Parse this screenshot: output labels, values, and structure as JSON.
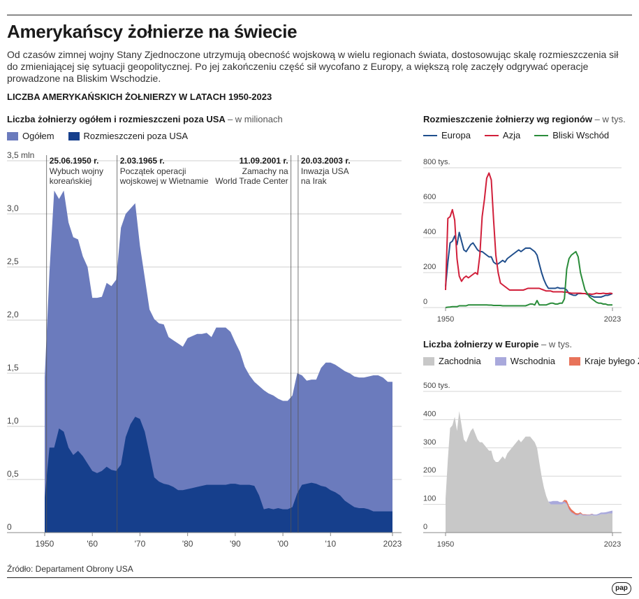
{
  "title": "Amerykańscy żołnierze na świecie",
  "lead": "Od czasów zimnej wojny Stany Zjednoczone utrzymują obecność wojskową w wielu regionach świata, dostosowując skalę rozmieszczenia sił do zmieniającej się sytuacji geopolitycznej. Po jej zakończeniu część sił wycofano z Europy, a większą rolę zaczęły odgrywać operacje prowadzone na Bliskim Wschodzie.",
  "section_title": "LICZBA AMERYKAŃSKICH ŻOŁNIERZY W LATACH 1950-2023",
  "source": "Źródło: Departament Obrony USA",
  "logo": "pap",
  "colors": {
    "total": "#6b7bbd",
    "abroad": "#163f8c",
    "europa": "#1f4e8c",
    "azja": "#d11f3a",
    "bliski": "#2a8c3a",
    "zachodnia": "#c8c8c8",
    "wschodnia": "#a9a9dc",
    "zsrr": "#e8735a"
  },
  "chart_data": [
    {
      "type": "area",
      "title": "Liczba żołnierzy ogółem i rozmieszczeni poza USA",
      "unit": "– w milionach",
      "ylim": [
        0,
        3.5
      ],
      "yticks": [
        "3,5 mln",
        "3,0",
        "2,5",
        "2,0",
        "1,5",
        "1,0",
        "0,5",
        "0"
      ],
      "xticks": [
        "1950",
        "'60",
        "'70",
        "'80",
        "'90",
        "'00",
        "'10",
        "2023"
      ],
      "legend": [
        "Ogółem",
        "Rozmieszczeni poza USA"
      ],
      "x": [
        1950,
        1951,
        1952,
        1953,
        1954,
        1955,
        1956,
        1957,
        1958,
        1959,
        1960,
        1961,
        1962,
        1963,
        1964,
        1965,
        1966,
        1967,
        1968,
        1969,
        1970,
        1971,
        1972,
        1973,
        1974,
        1975,
        1976,
        1977,
        1978,
        1979,
        1980,
        1981,
        1982,
        1983,
        1984,
        1985,
        1986,
        1987,
        1988,
        1989,
        1990,
        1991,
        1992,
        1993,
        1994,
        1995,
        1996,
        1997,
        1998,
        1999,
        2000,
        2001,
        2002,
        2003,
        2004,
        2005,
        2006,
        2007,
        2008,
        2009,
        2010,
        2011,
        2012,
        2013,
        2014,
        2015,
        2016,
        2017,
        2018,
        2019,
        2020,
        2021,
        2022,
        2023
      ],
      "series": [
        {
          "name": "Ogółem",
          "values": [
            1.46,
            2.45,
            3.22,
            3.14,
            3.22,
            2.92,
            2.78,
            2.76,
            2.6,
            2.5,
            2.21,
            2.21,
            2.22,
            2.35,
            2.32,
            2.38,
            2.87,
            3.0,
            3.05,
            3.1,
            2.7,
            2.4,
            2.1,
            2.01,
            1.97,
            1.96,
            1.84,
            1.81,
            1.78,
            1.75,
            1.83,
            1.85,
            1.87,
            1.87,
            1.88,
            1.84,
            1.93,
            1.93,
            1.93,
            1.89,
            1.79,
            1.7,
            1.56,
            1.48,
            1.42,
            1.38,
            1.34,
            1.31,
            1.29,
            1.26,
            1.24,
            1.24,
            1.29,
            1.5,
            1.48,
            1.43,
            1.44,
            1.44,
            1.55,
            1.6,
            1.6,
            1.58,
            1.55,
            1.52,
            1.5,
            1.47,
            1.46,
            1.46,
            1.47,
            1.48,
            1.48,
            1.46,
            1.42,
            1.42
          ]
        },
        {
          "name": "Rozmieszczeni poza USA",
          "values": [
            0.33,
            0.8,
            0.8,
            0.98,
            0.95,
            0.8,
            0.73,
            0.77,
            0.72,
            0.65,
            0.58,
            0.56,
            0.58,
            0.62,
            0.59,
            0.58,
            0.64,
            0.9,
            1.02,
            1.09,
            1.07,
            0.95,
            0.74,
            0.52,
            0.48,
            0.46,
            0.45,
            0.43,
            0.4,
            0.4,
            0.41,
            0.42,
            0.43,
            0.44,
            0.45,
            0.45,
            0.45,
            0.45,
            0.45,
            0.46,
            0.46,
            0.45,
            0.45,
            0.45,
            0.44,
            0.35,
            0.22,
            0.23,
            0.22,
            0.23,
            0.22,
            0.22,
            0.24,
            0.37,
            0.45,
            0.46,
            0.47,
            0.46,
            0.44,
            0.43,
            0.4,
            0.38,
            0.35,
            0.3,
            0.27,
            0.24,
            0.23,
            0.23,
            0.22,
            0.2,
            0.2,
            0.2,
            0.2,
            0.2
          ]
        }
      ],
      "annotations": [
        {
          "x": 1950.4,
          "date": "25.06.1950 r.",
          "text": [
            "Wybuch wojny",
            "koreańskiej"
          ],
          "align": "left"
        },
        {
          "x": 1965.2,
          "date": "2.03.1965 r.",
          "text": [
            "Początek operacji",
            "wojskowej w Wietnamie"
          ],
          "align": "left"
        },
        {
          "x": 2001.7,
          "date": "11.09.2001 r.",
          "text": [
            "Zamachy na",
            "World Trade Center"
          ],
          "align": "right"
        },
        {
          "x": 2003.2,
          "date": "20.03.2003 r.",
          "text": [
            "Inwazja USA",
            "na Irak"
          ],
          "align": "left"
        }
      ]
    },
    {
      "type": "line",
      "title": "Rozmieszczenie żołnierzy wg regionów",
      "unit": "– w tys.",
      "ylim": [
        0,
        800
      ],
      "yticks": [
        "800 tys.",
        "600",
        "400",
        "200",
        "0"
      ],
      "xticks": [
        "1950",
        "2023"
      ],
      "legend": [
        "Europa",
        "Azja",
        "Bliski Wschód"
      ],
      "x": [
        1950,
        1951,
        1952,
        1953,
        1954,
        1955,
        1956,
        1957,
        1958,
        1959,
        1960,
        1961,
        1962,
        1963,
        1964,
        1965,
        1966,
        1967,
        1968,
        1969,
        1970,
        1971,
        1972,
        1973,
        1974,
        1975,
        1976,
        1977,
        1978,
        1979,
        1980,
        1981,
        1982,
        1983,
        1984,
        1985,
        1986,
        1987,
        1988,
        1989,
        1990,
        1991,
        1992,
        1993,
        1994,
        1995,
        1996,
        1997,
        1998,
        1999,
        2000,
        2001,
        2002,
        2003,
        2004,
        2005,
        2006,
        2007,
        2008,
        2009,
        2010,
        2011,
        2012,
        2013,
        2014,
        2015,
        2016,
        2017,
        2018,
        2019,
        2020,
        2021,
        2022,
        2023
      ],
      "series": [
        {
          "name": "Europa",
          "values": [
            120,
            260,
            370,
            380,
            410,
            360,
            430,
            380,
            330,
            320,
            340,
            360,
            370,
            350,
            330,
            320,
            320,
            310,
            300,
            290,
            290,
            260,
            250,
            250,
            260,
            270,
            260,
            280,
            290,
            300,
            310,
            320,
            330,
            320,
            330,
            340,
            340,
            340,
            330,
            320,
            300,
            250,
            200,
            160,
            130,
            110,
            110,
            110,
            110,
            115,
            110,
            110,
            110,
            100,
            80,
            75,
            70,
            70,
            80,
            80,
            80,
            80,
            75,
            70,
            65,
            60,
            60,
            60,
            60,
            65,
            70,
            70,
            75,
            80
          ]
        },
        {
          "name": "Azja",
          "values": [
            100,
            510,
            520,
            560,
            500,
            280,
            180,
            150,
            170,
            180,
            170,
            180,
            190,
            200,
            190,
            300,
            520,
            620,
            740,
            770,
            730,
            500,
            300,
            200,
            140,
            130,
            120,
            110,
            100,
            100,
            100,
            100,
            100,
            100,
            100,
            105,
            110,
            110,
            110,
            110,
            110,
            110,
            105,
            100,
            95,
            95,
            95,
            90,
            90,
            90,
            90,
            90,
            88,
            88,
            85,
            82,
            82,
            82,
            82,
            82,
            80,
            80,
            78,
            78,
            76,
            78,
            82,
            80,
            80,
            82,
            80,
            80,
            82,
            80
          ]
        },
        {
          "name": "Bliski Wschód",
          "values": [
            0,
            2,
            3,
            5,
            5,
            5,
            10,
            10,
            10,
            10,
            15,
            15,
            15,
            15,
            15,
            15,
            15,
            15,
            15,
            14,
            14,
            12,
            12,
            12,
            12,
            10,
            10,
            10,
            10,
            10,
            10,
            10,
            10,
            10,
            10,
            10,
            15,
            20,
            20,
            15,
            40,
            15,
            15,
            15,
            15,
            20,
            25,
            25,
            20,
            20,
            25,
            25,
            50,
            220,
            280,
            300,
            310,
            320,
            290,
            200,
            150,
            100,
            80,
            60,
            50,
            40,
            30,
            25,
            25,
            20,
            20,
            15,
            15,
            15
          ]
        }
      ]
    },
    {
      "type": "area",
      "title": "Liczba żołnierzy w Europie",
      "unit": "– w tys.",
      "ylim": [
        0,
        500
      ],
      "yticks": [
        "500 tys.",
        "400",
        "300",
        "200",
        "100",
        "0"
      ],
      "xticks": [
        "1950",
        "2023"
      ],
      "legend": [
        "Zachodnia",
        "Wschodnia",
        "Kraje byłego ZSRR"
      ],
      "x": [
        1950,
        1951,
        1952,
        1953,
        1954,
        1955,
        1956,
        1957,
        1958,
        1959,
        1960,
        1961,
        1962,
        1963,
        1964,
        1965,
        1966,
        1967,
        1968,
        1969,
        1970,
        1971,
        1972,
        1973,
        1974,
        1975,
        1976,
        1977,
        1978,
        1979,
        1980,
        1981,
        1982,
        1983,
        1984,
        1985,
        1986,
        1987,
        1988,
        1989,
        1990,
        1991,
        1992,
        1993,
        1994,
        1995,
        1996,
        1997,
        1998,
        1999,
        2000,
        2001,
        2002,
        2003,
        2004,
        2005,
        2006,
        2007,
        2008,
        2009,
        2010,
        2011,
        2012,
        2013,
        2014,
        2015,
        2016,
        2017,
        2018,
        2019,
        2020,
        2021,
        2022,
        2023
      ],
      "series": [
        {
          "name": "Zachodnia",
          "values": [
            120,
            260,
            370,
            380,
            410,
            360,
            430,
            380,
            330,
            320,
            340,
            360,
            370,
            350,
            330,
            320,
            320,
            310,
            300,
            290,
            290,
            260,
            250,
            250,
            260,
            270,
            260,
            280,
            290,
            300,
            310,
            320,
            330,
            320,
            330,
            340,
            340,
            340,
            330,
            320,
            300,
            250,
            200,
            160,
            130,
            110,
            100,
            100,
            100,
            100,
            100,
            100,
            105,
            100,
            80,
            70,
            65,
            60,
            60,
            65,
            60,
            60,
            60,
            60,
            62,
            60,
            60,
            62,
            65,
            65,
            65,
            67,
            68,
            68
          ]
        },
        {
          "name": "Wschodnia",
          "values": [
            0,
            0,
            0,
            0,
            0,
            0,
            0,
            0,
            0,
            0,
            0,
            0,
            0,
            0,
            0,
            0,
            0,
            0,
            0,
            0,
            0,
            0,
            0,
            0,
            0,
            0,
            0,
            0,
            0,
            0,
            0,
            0,
            0,
            0,
            0,
            0,
            0,
            0,
            0,
            0,
            0,
            0,
            0,
            0,
            0,
            0,
            10,
            12,
            12,
            12,
            8,
            8,
            6,
            4,
            3,
            3,
            3,
            3,
            3,
            3,
            3,
            3,
            3,
            3,
            4,
            4,
            4,
            5,
            6,
            6,
            7,
            7,
            8,
            10
          ]
        },
        {
          "name": "Kraje byłego ZSRR",
          "values": [
            0,
            0,
            0,
            0,
            0,
            0,
            0,
            0,
            0,
            0,
            0,
            0,
            0,
            0,
            0,
            0,
            0,
            0,
            0,
            0,
            0,
            0,
            0,
            0,
            0,
            0,
            0,
            0,
            0,
            0,
            0,
            0,
            0,
            0,
            0,
            0,
            0,
            0,
            0,
            0,
            0,
            0,
            0,
            0,
            0,
            0,
            0,
            0,
            0,
            0,
            0,
            0,
            5,
            10,
            12,
            10,
            8,
            6,
            5,
            4,
            2,
            2,
            1,
            1,
            1,
            0,
            0,
            0,
            0,
            0,
            0,
            0,
            0,
            0
          ]
        }
      ]
    }
  ]
}
